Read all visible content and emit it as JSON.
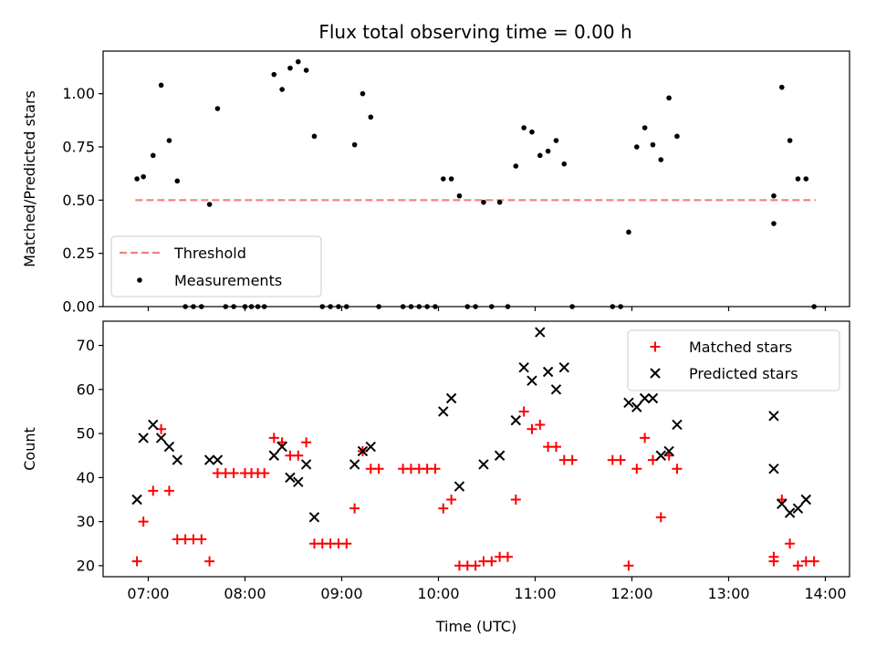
{
  "chart_data": [
    {
      "type": "scatter",
      "title": "Flux total observing time = 0.00 h",
      "xlabel": "",
      "ylabel": "Matched/Predicted stars",
      "xlim": [
        "06:32",
        "14:15"
      ],
      "ylim": [
        0.0,
        1.2
      ],
      "x_ticks": [
        "07:00",
        "08:00",
        "09:00",
        "10:00",
        "11:00",
        "12:00",
        "13:00",
        "14:00"
      ],
      "y_ticks": [
        "0.00",
        "0.25",
        "0.50",
        "0.75",
        "1.00"
      ],
      "grid": false,
      "legend_position": "lower-left",
      "series": [
        {
          "name": "Threshold",
          "style": "dashed-line",
          "color": "#f08080",
          "points": [
            [
              "06:52",
              0.5
            ],
            [
              "13:54",
              0.5
            ]
          ]
        },
        {
          "name": "Measurements",
          "style": "dot",
          "color": "#000000",
          "points": [
            [
              "06:53",
              0.6
            ],
            [
              "06:57",
              0.61
            ],
            [
              "07:03",
              0.71
            ],
            [
              "07:08",
              1.04
            ],
            [
              "07:13",
              0.78
            ],
            [
              "07:18",
              0.59
            ],
            [
              "07:23",
              0.0
            ],
            [
              "07:28",
              0.0
            ],
            [
              "07:33",
              0.0
            ],
            [
              "07:38",
              0.48
            ],
            [
              "07:43",
              0.93
            ],
            [
              "07:48",
              0.0
            ],
            [
              "07:53",
              0.0
            ],
            [
              "08:00",
              0.0
            ],
            [
              "08:04",
              0.0
            ],
            [
              "08:08",
              0.0
            ],
            [
              "08:12",
              0.0
            ],
            [
              "08:18",
              1.09
            ],
            [
              "08:23",
              1.02
            ],
            [
              "08:28",
              1.12
            ],
            [
              "08:33",
              1.15
            ],
            [
              "08:38",
              1.11
            ],
            [
              "08:43",
              0.8
            ],
            [
              "08:48",
              0.0
            ],
            [
              "08:53",
              0.0
            ],
            [
              "08:58",
              0.0
            ],
            [
              "09:03",
              0.0
            ],
            [
              "09:08",
              0.76
            ],
            [
              "09:13",
              1.0
            ],
            [
              "09:18",
              0.89
            ],
            [
              "09:23",
              0.0
            ],
            [
              "09:38",
              0.0
            ],
            [
              "09:43",
              0.0
            ],
            [
              "09:48",
              0.0
            ],
            [
              "09:53",
              0.0
            ],
            [
              "09:58",
              0.0
            ],
            [
              "10:03",
              0.6
            ],
            [
              "10:08",
              0.6
            ],
            [
              "10:13",
              0.52
            ],
            [
              "10:18",
              0.0
            ],
            [
              "10:23",
              0.0
            ],
            [
              "10:28",
              0.49
            ],
            [
              "10:33",
              0.0
            ],
            [
              "10:38",
              0.49
            ],
            [
              "10:43",
              0.0
            ],
            [
              "10:48",
              0.66
            ],
            [
              "10:53",
              0.84
            ],
            [
              "10:58",
              0.82
            ],
            [
              "11:03",
              0.71
            ],
            [
              "11:08",
              0.73
            ],
            [
              "11:13",
              0.78
            ],
            [
              "11:18",
              0.67
            ],
            [
              "11:23",
              0.0
            ],
            [
              "11:48",
              0.0
            ],
            [
              "11:53",
              0.0
            ],
            [
              "11:58",
              0.35
            ],
            [
              "12:03",
              0.75
            ],
            [
              "12:08",
              0.84
            ],
            [
              "12:13",
              0.76
            ],
            [
              "12:18",
              0.69
            ],
            [
              "12:23",
              0.98
            ],
            [
              "12:28",
              0.8
            ],
            [
              "13:28",
              0.39
            ],
            [
              "13:28",
              0.52
            ],
            [
              "13:33",
              1.03
            ],
            [
              "13:38",
              0.78
            ],
            [
              "13:43",
              0.6
            ],
            [
              "13:48",
              0.6
            ],
            [
              "13:53",
              0.0
            ]
          ]
        }
      ]
    },
    {
      "type": "scatter",
      "title": "",
      "xlabel": "Time (UTC)",
      "ylabel": "Count",
      "xlim": [
        "06:32",
        "14:15"
      ],
      "ylim": [
        17.5,
        75.5
      ],
      "x_ticks": [
        "07:00",
        "08:00",
        "09:00",
        "10:00",
        "11:00",
        "12:00",
        "13:00",
        "14:00"
      ],
      "y_ticks": [
        "20",
        "30",
        "40",
        "50",
        "60",
        "70"
      ],
      "grid": false,
      "legend_position": "top-right",
      "series": [
        {
          "name": "Matched stars",
          "marker": "plus",
          "color": "#ff0000",
          "points": [
            [
              "06:53",
              21
            ],
            [
              "06:57",
              30
            ],
            [
              "07:03",
              37
            ],
            [
              "07:08",
              51
            ],
            [
              "07:13",
              37
            ],
            [
              "07:18",
              26
            ],
            [
              "07:23",
              26
            ],
            [
              "07:28",
              26
            ],
            [
              "07:33",
              26
            ],
            [
              "07:38",
              21
            ],
            [
              "07:43",
              41
            ],
            [
              "07:48",
              41
            ],
            [
              "07:53",
              41
            ],
            [
              "08:00",
              41
            ],
            [
              "08:04",
              41
            ],
            [
              "08:08",
              41
            ],
            [
              "08:12",
              41
            ],
            [
              "08:18",
              49
            ],
            [
              "08:23",
              48
            ],
            [
              "08:28",
              45
            ],
            [
              "08:33",
              45
            ],
            [
              "08:38",
              48
            ],
            [
              "08:43",
              25
            ],
            [
              "08:48",
              25
            ],
            [
              "08:53",
              25
            ],
            [
              "08:58",
              25
            ],
            [
              "09:03",
              25
            ],
            [
              "09:08",
              33
            ],
            [
              "09:13",
              46
            ],
            [
              "09:18",
              42
            ],
            [
              "09:23",
              42
            ],
            [
              "09:38",
              42
            ],
            [
              "09:43",
              42
            ],
            [
              "09:48",
              42
            ],
            [
              "09:53",
              42
            ],
            [
              "09:58",
              42
            ],
            [
              "10:03",
              33
            ],
            [
              "10:08",
              35
            ],
            [
              "10:13",
              20
            ],
            [
              "10:18",
              20
            ],
            [
              "10:23",
              20
            ],
            [
              "10:28",
              21
            ],
            [
              "10:33",
              21
            ],
            [
              "10:38",
              22
            ],
            [
              "10:43",
              22
            ],
            [
              "10:48",
              35
            ],
            [
              "10:53",
              55
            ],
            [
              "10:58",
              51
            ],
            [
              "11:03",
              52
            ],
            [
              "11:08",
              47
            ],
            [
              "11:13",
              47
            ],
            [
              "11:18",
              44
            ],
            [
              "11:23",
              44
            ],
            [
              "11:48",
              44
            ],
            [
              "11:53",
              44
            ],
            [
              "11:58",
              20
            ],
            [
              "12:03",
              42
            ],
            [
              "12:08",
              49
            ],
            [
              "12:13",
              44
            ],
            [
              "12:18",
              31
            ],
            [
              "12:23",
              45
            ],
            [
              "12:28",
              42
            ],
            [
              "13:28",
              21
            ],
            [
              "13:28",
              22
            ],
            [
              "13:33",
              35
            ],
            [
              "13:38",
              25
            ],
            [
              "13:43",
              20
            ],
            [
              "13:48",
              21
            ],
            [
              "13:53",
              21
            ]
          ]
        },
        {
          "name": "Predicted stars",
          "marker": "x",
          "color": "#000000",
          "points": [
            [
              "06:53",
              35
            ],
            [
              "06:57",
              49
            ],
            [
              "07:03",
              52
            ],
            [
              "07:08",
              49
            ],
            [
              "07:13",
              47
            ],
            [
              "07:18",
              44
            ],
            [
              "07:38",
              44
            ],
            [
              "07:43",
              44
            ],
            [
              "08:18",
              45
            ],
            [
              "08:23",
              47
            ],
            [
              "08:28",
              40
            ],
            [
              "08:33",
              39
            ],
            [
              "08:38",
              43
            ],
            [
              "08:43",
              31
            ],
            [
              "09:08",
              43
            ],
            [
              "09:13",
              46
            ],
            [
              "09:18",
              47
            ],
            [
              "10:03",
              55
            ],
            [
              "10:08",
              58
            ],
            [
              "10:13",
              38
            ],
            [
              "10:28",
              43
            ],
            [
              "10:38",
              45
            ],
            [
              "10:48",
              53
            ],
            [
              "10:53",
              65
            ],
            [
              "10:58",
              62
            ],
            [
              "11:03",
              73
            ],
            [
              "11:08",
              64
            ],
            [
              "11:13",
              60
            ],
            [
              "11:18",
              65
            ],
            [
              "11:58",
              57
            ],
            [
              "12:03",
              56
            ],
            [
              "12:08",
              58
            ],
            [
              "12:13",
              58
            ],
            [
              "12:18",
              45
            ],
            [
              "12:23",
              46
            ],
            [
              "12:28",
              52
            ],
            [
              "13:28",
              54
            ],
            [
              "13:28",
              42
            ],
            [
              "13:33",
              34
            ],
            [
              "13:38",
              32
            ],
            [
              "13:43",
              33
            ],
            [
              "13:48",
              35
            ]
          ]
        }
      ]
    }
  ]
}
